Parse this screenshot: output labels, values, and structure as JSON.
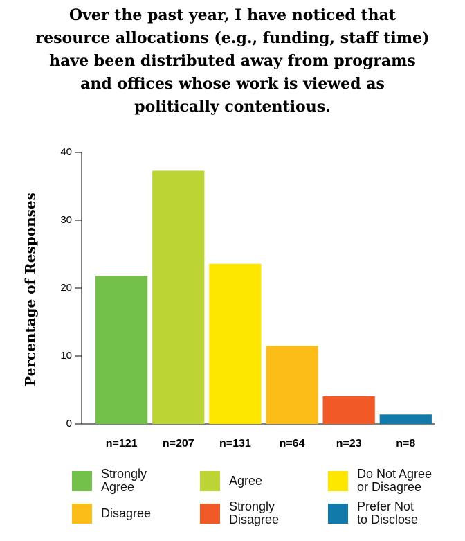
{
  "chart_data": {
    "type": "bar",
    "title": "Over the past year, I have noticed that\nresource allocations (e.g., funding, staff time)\nhave been distributed away from programs\nand offices whose work is viewed as\npolitically contentious.",
    "ylabel": "Percentage of Responses",
    "xlabel": "",
    "ylim": [
      0,
      40
    ],
    "yticks": [
      0,
      10,
      20,
      30,
      40
    ],
    "grid": false,
    "legend_position": "bottom",
    "categories": [
      "Strongly\nAgree",
      "Agree",
      "Do Not Agree\nor Disagree",
      "Disagree",
      "Strongly\nDisagree",
      "Prefer Not\nto Disclose"
    ],
    "values": [
      21.8,
      37.3,
      23.6,
      11.5,
      4.1,
      1.4
    ],
    "n_labels": [
      "n=121",
      "n=207",
      "n=131",
      "n=64",
      "n=23",
      "n=8"
    ],
    "colors": [
      "#73c04a",
      "#bcd534",
      "#fde600",
      "#fdbd18",
      "#f15a27",
      "#117aab"
    ]
  }
}
